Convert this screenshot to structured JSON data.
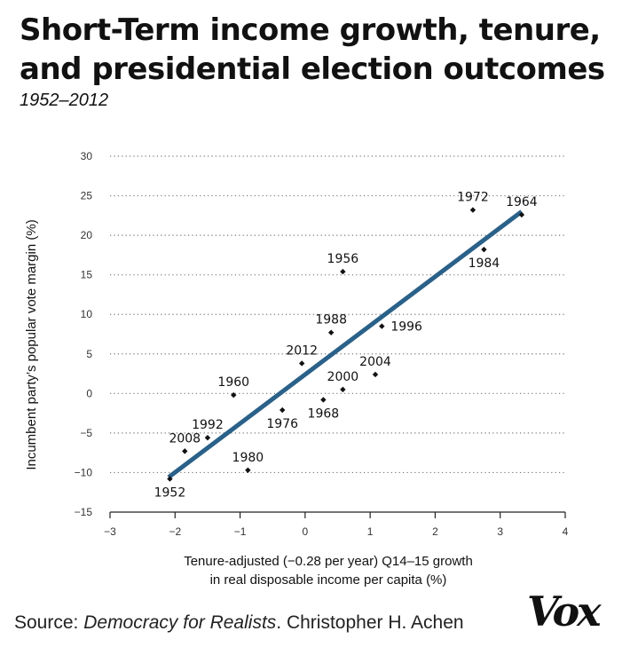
{
  "title": "Short-Term income growth, tenure, and presidential election outcomes",
  "subtitle": "1952–2012",
  "source": {
    "prefix": "Source: ",
    "work": "Democracy for Realists",
    "suffix": ". Christopher H. Achen"
  },
  "logo": "Vox",
  "colors": {
    "trend_line": "#2a6189",
    "points": "#111111",
    "gridlines": "#777777"
  },
  "chart_data": {
    "type": "scatter",
    "xlabel": "Tenure-adjusted (−0.28 per year) Q14–15 growth",
    "xlabel_line2": "in real disposable income per capita (%)",
    "ylabel": "Incumbent party’s popular vote margin (%)",
    "xlim": [
      -3,
      4
    ],
    "ylim": [
      -15,
      30
    ],
    "xticks": [
      -3,
      -2,
      -1,
      0,
      1,
      2,
      3,
      4
    ],
    "yticks": [
      30,
      25,
      20,
      15,
      10,
      5,
      0,
      -5,
      -10,
      -15
    ],
    "xtick_labels": [
      "−3",
      "−2",
      "−1",
      "0",
      "1",
      "2",
      "3",
      "4"
    ],
    "ytick_labels": [
      "30",
      "25",
      "20",
      "15",
      "10",
      "5",
      "0",
      "−5",
      "−10",
      "−15"
    ],
    "grid": "horizontal dotted",
    "points": [
      {
        "label": "1952",
        "x": -2.08,
        "y": -10.8,
        "label_pos": "below"
      },
      {
        "label": "1956",
        "x": 0.58,
        "y": 15.4,
        "label_pos": "above"
      },
      {
        "label": "1960",
        "x": -1.1,
        "y": -0.2,
        "label_pos": "above"
      },
      {
        "label": "1964",
        "x": 3.33,
        "y": 22.6,
        "label_pos": "above"
      },
      {
        "label": "1968",
        "x": 0.28,
        "y": -0.8,
        "label_pos": "below"
      },
      {
        "label": "1972",
        "x": 2.58,
        "y": 23.2,
        "label_pos": "above"
      },
      {
        "label": "1976",
        "x": -0.35,
        "y": -2.1,
        "label_pos": "below"
      },
      {
        "label": "1980",
        "x": -0.88,
        "y": -9.7,
        "label_pos": "above"
      },
      {
        "label": "1984",
        "x": 2.75,
        "y": 18.2,
        "label_pos": "below"
      },
      {
        "label": "1988",
        "x": 0.4,
        "y": 7.7,
        "label_pos": "above"
      },
      {
        "label": "1992",
        "x": -1.5,
        "y": -5.6,
        "label_pos": "above"
      },
      {
        "label": "1996",
        "x": 1.18,
        "y": 8.5,
        "label_pos": "right"
      },
      {
        "label": "2000",
        "x": 0.58,
        "y": 0.5,
        "label_pos": "above"
      },
      {
        "label": "2004",
        "x": 1.08,
        "y": 2.4,
        "label_pos": "above"
      },
      {
        "label": "2008",
        "x": -1.85,
        "y": -7.3,
        "label_pos": "above"
      },
      {
        "label": "2012",
        "x": -0.05,
        "y": 3.8,
        "label_pos": "above"
      }
    ],
    "trend_line": {
      "x": [
        -2.1,
        3.33
      ],
      "y": [
        -10.6,
        23.0
      ]
    }
  }
}
